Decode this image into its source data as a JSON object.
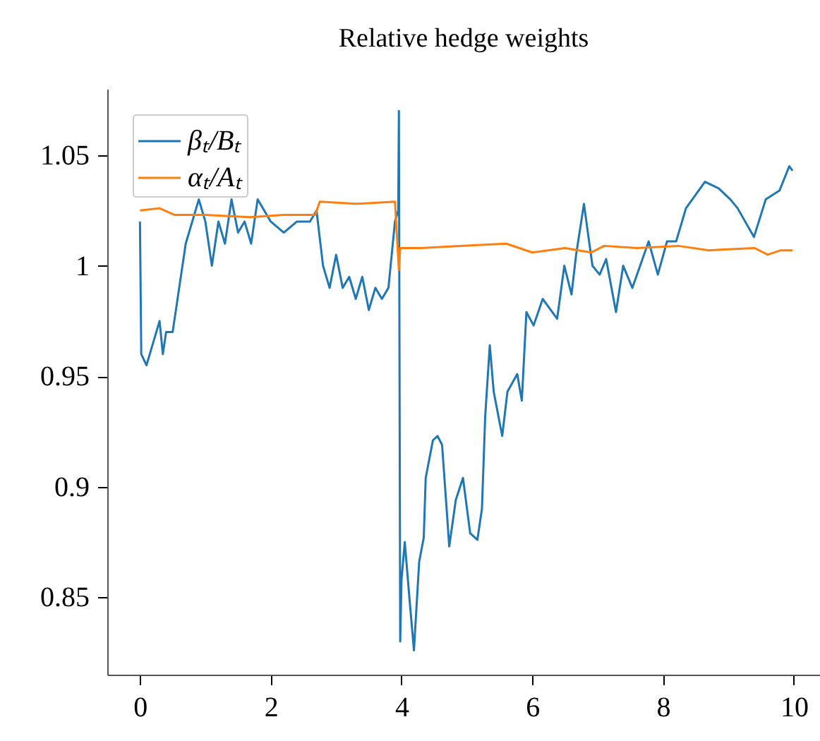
{
  "chart_data": {
    "type": "line",
    "title": "Relative hedge weights",
    "xlim": [
      -0.5,
      10.4
    ],
    "ylim": [
      0.815,
      1.08
    ],
    "xticks": [
      0,
      2,
      4,
      6,
      8,
      10
    ],
    "yticks": [
      0.85,
      0.9,
      0.95,
      1,
      1.05
    ],
    "grid": false,
    "legend": "top left",
    "series": [
      {
        "name": "βₜ/Bₜ",
        "color": "#1f77b4",
        "x": [
          0,
          0.02,
          0.1,
          0.2,
          0.3,
          0.35,
          0.4,
          0.5,
          0.6,
          0.7,
          0.8,
          0.9,
          1.0,
          1.1,
          1.2,
          1.3,
          1.4,
          1.5,
          1.6,
          1.7,
          1.8,
          2.0,
          2.2,
          2.4,
          2.6,
          2.7,
          2.8,
          2.9,
          3.0,
          3.1,
          3.2,
          3.3,
          3.4,
          3.5,
          3.6,
          3.7,
          3.8,
          3.9,
          3.95,
          3.96,
          3.98,
          4.0,
          4.05,
          4.12,
          4.19,
          4.27,
          4.34,
          4.37,
          4.48,
          4.55,
          4.62,
          4.69,
          4.73,
          4.83,
          4.94,
          5.05,
          5.16,
          5.23,
          5.28,
          5.35,
          5.41,
          5.54,
          5.62,
          5.77,
          5.84,
          5.91,
          6.02,
          6.16,
          6.38,
          6.49,
          6.6,
          6.67,
          6.79,
          6.85,
          6.92,
          7.03,
          7.13,
          7.28,
          7.39,
          7.53,
          7.78,
          7.92,
          8.06,
          8.2,
          8.35,
          8.64,
          8.85,
          9.03,
          9.14,
          9.39,
          9.57,
          9.78,
          9.93,
          9.98
        ],
        "values": [
          1.02,
          0.96,
          0.955,
          0.965,
          0.975,
          0.96,
          0.97,
          0.97,
          0.99,
          1.01,
          1.02,
          1.03,
          1.02,
          1.0,
          1.02,
          1.01,
          1.03,
          1.015,
          1.02,
          1.01,
          1.03,
          1.02,
          1.015,
          1.02,
          1.02,
          1.025,
          1.0,
          0.99,
          1.005,
          0.99,
          0.995,
          0.985,
          0.995,
          0.98,
          0.99,
          0.985,
          0.99,
          1.02,
          1.025,
          1.07,
          0.83,
          0.858,
          0.875,
          0.85,
          0.826,
          0.866,
          0.877,
          0.904,
          0.921,
          0.923,
          0.919,
          0.89,
          0.873,
          0.894,
          0.904,
          0.879,
          0.876,
          0.89,
          0.932,
          0.964,
          0.943,
          0.923,
          0.943,
          0.951,
          0.939,
          0.979,
          0.973,
          0.985,
          0.976,
          1.0,
          0.987,
          1.005,
          1.028,
          1.015,
          1.0,
          0.996,
          1.003,
          0.979,
          1.0,
          0.99,
          1.011,
          0.996,
          1.011,
          1.011,
          1.026,
          1.038,
          1.035,
          1.03,
          1.026,
          1.013,
          1.03,
          1.034,
          1.045,
          1.043
        ]
      },
      {
        "name": "αₜ/Aₜ",
        "color": "#ff7f0e",
        "x": [
          0,
          0.3,
          0.53,
          1.0,
          1.68,
          2.2,
          2.68,
          2.75,
          3.3,
          3.9,
          3.96,
          3.98,
          4.3,
          4.9,
          5.6,
          6.0,
          6.5,
          6.9,
          7.1,
          7.6,
          8.23,
          8.7,
          9.4,
          9.6,
          9.8,
          9.98
        ],
        "values": [
          1.025,
          1.026,
          1.023,
          1.023,
          1.022,
          1.023,
          1.023,
          1.029,
          1.028,
          1.029,
          0.998,
          1.008,
          1.008,
          1.009,
          1.01,
          1.006,
          1.008,
          1.006,
          1.009,
          1.008,
          1.009,
          1.007,
          1.008,
          1.005,
          1.007,
          1.007
        ]
      }
    ]
  }
}
